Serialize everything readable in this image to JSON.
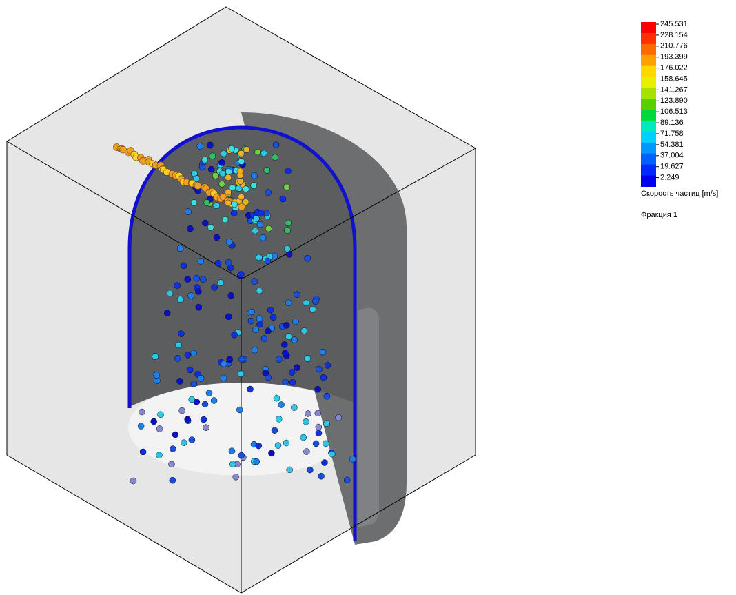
{
  "legend": {
    "labels": [
      "245.531",
      "228.154",
      "210.776",
      "193.399",
      "176.022",
      "158.645",
      "141.267",
      "123.890",
      "106.513",
      "89.136",
      "71.758",
      "54.381",
      "37.004",
      "19.627",
      "2.249"
    ],
    "title": "Скорость частиц [m/s]",
    "fraction": "Фракция 1"
  }
}
